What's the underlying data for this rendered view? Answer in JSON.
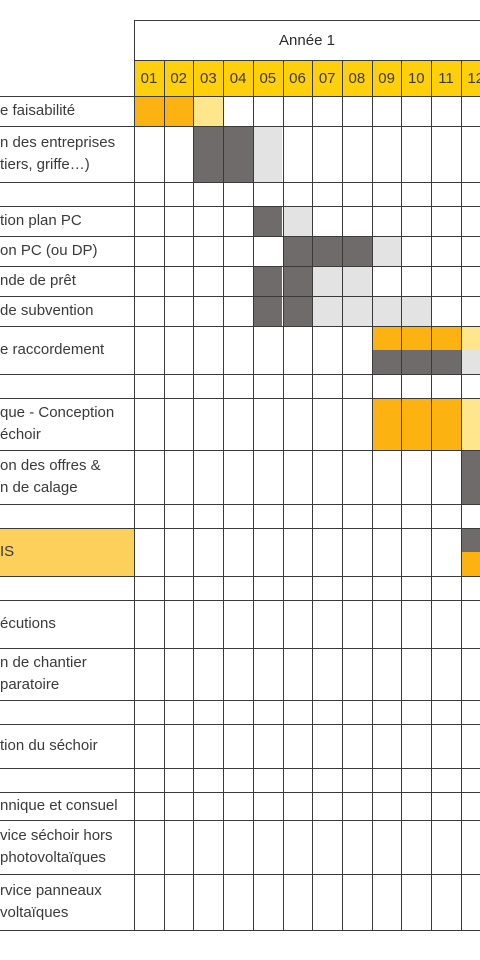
{
  "header": {
    "year": "Année 1",
    "months": [
      "01",
      "02",
      "03",
      "04",
      "05",
      "06",
      "07",
      "08",
      "09",
      "10",
      "11",
      "12"
    ]
  },
  "colors": {
    "header_bg": "#fecf0b",
    "orange": "#fcb211",
    "light_yellow": "#fde68c",
    "dark_grey": "#6f6b6b",
    "light_grey": "#e3e3e3",
    "label_highlight": "#fdd05c",
    "grid": "#3a3a3a"
  },
  "rows": [
    {
      "lines": [
        "e faisabilité"
      ]
    },
    {
      "lines": [
        "n des entreprises",
        "tiers, griffe…)"
      ]
    },
    {
      "lines": [
        ""
      ]
    },
    {
      "lines": [
        "tion plan PC"
      ]
    },
    {
      "lines": [
        "on PC (ou DP)"
      ]
    },
    {
      "lines": [
        "nde de prêt"
      ]
    },
    {
      "lines": [
        "de subvention"
      ]
    },
    {
      "lines": [
        "e raccordement"
      ]
    },
    {
      "lines": [
        ""
      ]
    },
    {
      "lines": [
        "que - Conception",
        "échoir"
      ]
    },
    {
      "lines": [
        "on des offres &",
        "n de calage"
      ]
    },
    {
      "lines": [
        ""
      ]
    },
    {
      "lines": [
        "IS"
      ],
      "highlight": true
    },
    {
      "lines": [
        ""
      ]
    },
    {
      "lines": [
        "écutions"
      ]
    },
    {
      "lines": [
        "n de chantier",
        "paratoire"
      ]
    },
    {
      "lines": [
        ""
      ]
    },
    {
      "lines": [
        "tion du séchoir"
      ]
    },
    {
      "lines": [
        ""
      ]
    },
    {
      "lines": [
        "nnique et consuel"
      ]
    },
    {
      "lines": [
        "vice séchoir hors",
        "photovoltaïques"
      ]
    },
    {
      "lines": [
        "rvice panneaux",
        "voltaïques"
      ]
    }
  ],
  "bars": [
    {
      "row": 0,
      "month": 1,
      "color": "orange"
    },
    {
      "row": 0,
      "month": 2,
      "color": "orange"
    },
    {
      "row": 0,
      "month": 3,
      "color": "light_yellow"
    },
    {
      "row": 1,
      "month": 3,
      "color": "dark_grey"
    },
    {
      "row": 1,
      "month": 4,
      "color": "dark_grey"
    },
    {
      "row": 1,
      "month": 5,
      "color": "light_grey"
    },
    {
      "row": 3,
      "month": 5,
      "color": "dark_grey"
    },
    {
      "row": 3,
      "month": 6,
      "color": "light_grey"
    },
    {
      "row": 4,
      "month": 6,
      "color": "dark_grey"
    },
    {
      "row": 4,
      "month": 7,
      "color": "dark_grey"
    },
    {
      "row": 4,
      "month": 8,
      "color": "dark_grey"
    },
    {
      "row": 4,
      "month": 9,
      "color": "light_grey"
    },
    {
      "row": 5,
      "month": 5,
      "color": "dark_grey"
    },
    {
      "row": 5,
      "month": 6,
      "color": "dark_grey"
    },
    {
      "row": 5,
      "month": 7,
      "color": "light_grey"
    },
    {
      "row": 5,
      "month": 8,
      "color": "light_grey"
    },
    {
      "row": 6,
      "month": 5,
      "color": "dark_grey"
    },
    {
      "row": 6,
      "month": 6,
      "color": "dark_grey"
    },
    {
      "row": 6,
      "month": 7,
      "color": "light_grey"
    },
    {
      "row": 6,
      "month": 8,
      "color": "light_grey"
    },
    {
      "row": 6,
      "month": 9,
      "color": "light_grey"
    },
    {
      "row": 6,
      "month": 10,
      "color": "light_grey"
    },
    {
      "row": 7,
      "month": 9,
      "color": "orange",
      "part": "top"
    },
    {
      "row": 7,
      "month": 10,
      "color": "orange",
      "part": "top"
    },
    {
      "row": 7,
      "month": 11,
      "color": "orange",
      "part": "top"
    },
    {
      "row": 7,
      "month": 12,
      "color": "light_yellow",
      "part": "top"
    },
    {
      "row": 7,
      "month": 9,
      "color": "dark_grey",
      "part": "bottom"
    },
    {
      "row": 7,
      "month": 10,
      "color": "dark_grey",
      "part": "bottom"
    },
    {
      "row": 7,
      "month": 11,
      "color": "dark_grey",
      "part": "bottom"
    },
    {
      "row": 7,
      "month": 12,
      "color": "light_grey",
      "part": "bottom"
    },
    {
      "row": 9,
      "month": 9,
      "color": "orange"
    },
    {
      "row": 9,
      "month": 10,
      "color": "orange"
    },
    {
      "row": 9,
      "month": 11,
      "color": "orange"
    },
    {
      "row": 9,
      "month": 12,
      "color": "light_yellow"
    },
    {
      "row": 10,
      "month": 12,
      "color": "dark_grey"
    },
    {
      "row": 12,
      "month": 12,
      "color": "dark_grey",
      "part": "top"
    },
    {
      "row": 12,
      "month": 12,
      "color": "orange",
      "part": "bottom"
    }
  ]
}
